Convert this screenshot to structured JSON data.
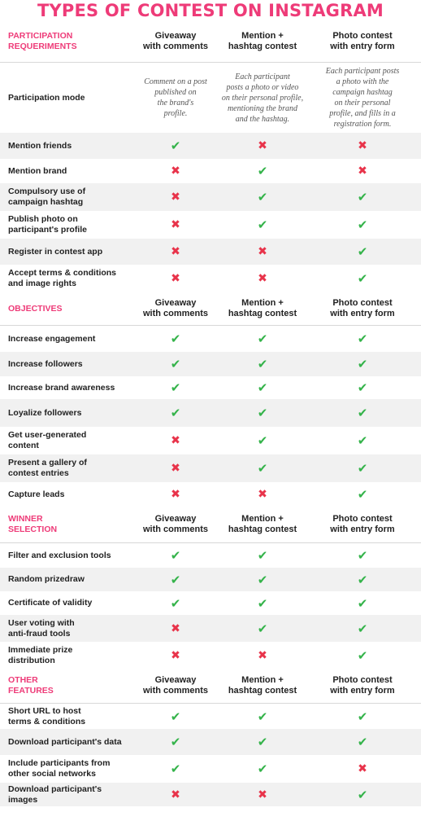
{
  "title": "TYPES OF CONTEST ON INSTAGRAM",
  "columns": [
    "Giveaway\nwith comments",
    "Mention +\nhashtag contest",
    "Photo contest\nwith entry form"
  ],
  "sections": [
    {
      "label": "PARTICIPATION\nREQUERIMENTS",
      "mode": {
        "label": "Participation mode",
        "desc": [
          "Comment on a post\npublished on\nthe brand's\nprofile.",
          "Each participant\nposts a photo or video\non their personal profile,\nmentioning the brand\nand the hashtag.",
          "Each participant posts\na photo with the\ncampaign hashtag\non their personal\nprofile, and fills in a\nregistration form."
        ]
      },
      "rows": [
        {
          "label": "Mention friends",
          "marks": [
            "yes",
            "no",
            "no"
          ]
        },
        {
          "label": "Mention brand",
          "marks": [
            "no",
            "yes",
            "no"
          ]
        },
        {
          "label": "Compulsory use of\ncampaign hashtag",
          "marks": [
            "no",
            "yes",
            "yes"
          ]
        },
        {
          "label": "Publish photo on\nparticipant's profile",
          "marks": [
            "no",
            "yes",
            "yes"
          ]
        },
        {
          "label": "Register in contest app",
          "marks": [
            "no",
            "no",
            "yes"
          ]
        },
        {
          "label": "Accept terms & conditions\nand image rights",
          "marks": [
            "no",
            "no",
            "yes"
          ]
        }
      ]
    },
    {
      "label": "OBJECTIVES",
      "rows": [
        {
          "label": "Increase engagement",
          "marks": [
            "yes",
            "yes",
            "yes"
          ]
        },
        {
          "label": "Increase followers",
          "marks": [
            "yes",
            "yes",
            "yes"
          ]
        },
        {
          "label": "Increase brand awareness",
          "marks": [
            "yes",
            "yes",
            "yes"
          ]
        },
        {
          "label": "Loyalize followers",
          "marks": [
            "yes",
            "yes",
            "yes"
          ]
        },
        {
          "label": "Get user-generated\ncontent",
          "marks": [
            "no",
            "yes",
            "yes"
          ]
        },
        {
          "label": "Present a gallery of\ncontest entries",
          "marks": [
            "no",
            "yes",
            "yes"
          ]
        },
        {
          "label": "Capture leads",
          "marks": [
            "no",
            "no",
            "yes"
          ]
        }
      ]
    },
    {
      "label": "WINNER\nSELECTION",
      "rows": [
        {
          "label": "Filter and exclusion tools",
          "marks": [
            "yes",
            "yes",
            "yes"
          ]
        },
        {
          "label": "Random prizedraw",
          "marks": [
            "yes",
            "yes",
            "yes"
          ]
        },
        {
          "label": "Certificate of validity",
          "marks": [
            "yes",
            "yes",
            "yes"
          ]
        },
        {
          "label": "User voting with\nanti-fraud tools",
          "marks": [
            "no",
            "yes",
            "yes"
          ]
        },
        {
          "label": "Immediate prize\ndistribution",
          "marks": [
            "no",
            "no",
            "yes"
          ]
        }
      ]
    },
    {
      "label": "OTHER\nFEATURES",
      "rows": [
        {
          "label": "Short URL to host\nterms & conditions",
          "marks": [
            "yes",
            "yes",
            "yes"
          ]
        },
        {
          "label": "Download participant's data",
          "marks": [
            "yes",
            "yes",
            "yes"
          ]
        },
        {
          "label": "Include participants from\nother social networks",
          "marks": [
            "yes",
            "yes",
            "no"
          ]
        },
        {
          "label": "Download participant's images",
          "marks": [
            "no",
            "no",
            "yes"
          ]
        }
      ]
    }
  ],
  "icons": {
    "yes": "check-icon",
    "no": "cross-icon"
  },
  "colors": {
    "accent": "#ee3b78",
    "yes": "#34b34a",
    "no": "#e8334a"
  }
}
